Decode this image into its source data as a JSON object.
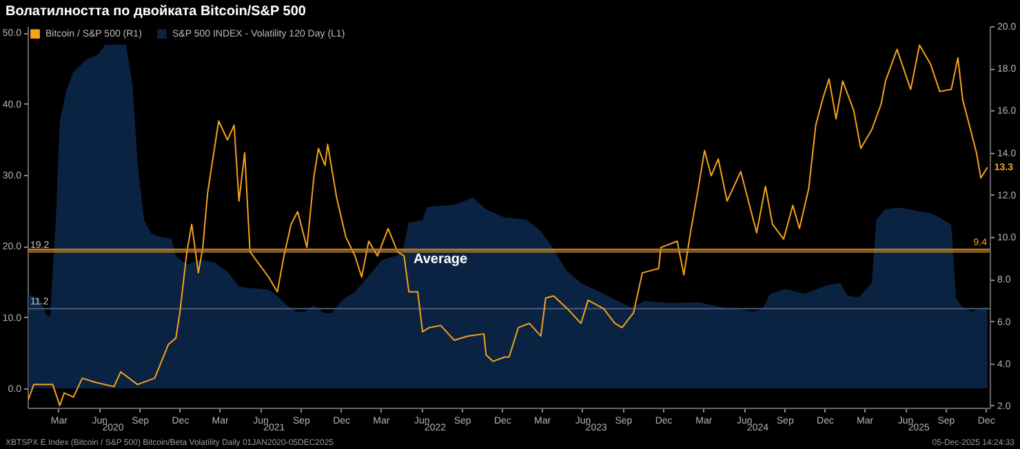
{
  "chart_data": {
    "type": "line",
    "title": "Волатилността по двойката Bitcoin/S&P 500",
    "xlim": [
      "2019-12-22",
      "2025-12-10"
    ],
    "xticks": [
      {
        "value": "2020-03-01",
        "label": "Mar"
      },
      {
        "value": "2020-06-01",
        "label": "Jun"
      },
      {
        "value": "2020-09-01",
        "label": "Sep"
      },
      {
        "value": "2020-12-01",
        "label": "Dec"
      },
      {
        "value": "2021-03-01",
        "label": "Mar"
      },
      {
        "value": "2021-06-01",
        "label": "Jun"
      },
      {
        "value": "2021-09-01",
        "label": "Sep"
      },
      {
        "value": "2021-12-01",
        "label": "Dec"
      },
      {
        "value": "2022-03-01",
        "label": "Mar"
      },
      {
        "value": "2022-06-01",
        "label": "Jun"
      },
      {
        "value": "2022-09-01",
        "label": "Sep"
      },
      {
        "value": "2022-12-01",
        "label": "Dec"
      },
      {
        "value": "2023-03-01",
        "label": "Mar"
      },
      {
        "value": "2023-06-01",
        "label": "Jun"
      },
      {
        "value": "2023-09-01",
        "label": "Sep"
      },
      {
        "value": "2023-12-01",
        "label": "Dec"
      },
      {
        "value": "2024-03-01",
        "label": "Mar"
      },
      {
        "value": "2024-06-01",
        "label": "Jun"
      },
      {
        "value": "2024-09-01",
        "label": "Sep"
      },
      {
        "value": "2024-12-01",
        "label": "Dec"
      },
      {
        "value": "2025-03-01",
        "label": "Mar"
      },
      {
        "value": "2025-06-01",
        "label": "Jun"
      },
      {
        "value": "2025-09-01",
        "label": "Sep"
      },
      {
        "value": "2025-12-01",
        "label": "Dec"
      }
    ],
    "x2lim": [
      "2019-12-22",
      "2025-12-10"
    ],
    "x2ticks": [
      {
        "value": "2020-07-01",
        "label": "2020"
      },
      {
        "value": "2021-07-01",
        "label": "2021"
      },
      {
        "value": "2022-07-01",
        "label": "2022"
      },
      {
        "value": "2023-07-01",
        "label": "2023"
      },
      {
        "value": "2024-07-01",
        "label": "2024"
      },
      {
        "value": "2025-07-01",
        "label": "2025"
      }
    ],
    "ylim": [
      -2.7,
      50.9
    ],
    "yticks": [
      {
        "value": 0,
        "label": "0.0"
      },
      {
        "value": 10,
        "label": "10.0"
      },
      {
        "value": 20,
        "label": "20.0"
      },
      {
        "value": 30,
        "label": "30.0"
      },
      {
        "value": 40,
        "label": "40.0"
      },
      {
        "value": 50,
        "label": "50.0"
      }
    ],
    "y2lim": [
      1.9,
      20.0
    ],
    "y2ticks": [
      {
        "value": 2,
        "label": "2.0"
      },
      {
        "value": 4,
        "label": "4.0"
      },
      {
        "value": 6,
        "label": "6.0"
      },
      {
        "value": 8,
        "label": "8.0"
      },
      {
        "value": 10,
        "label": "10.0"
      },
      {
        "value": 12,
        "label": "12.0"
      },
      {
        "value": 14,
        "label": "14.0"
      },
      {
        "value": 16,
        "label": "16.0"
      },
      {
        "value": 18,
        "label": "18.0"
      },
      {
        "value": 20,
        "label": "20.0"
      }
    ],
    "legend": "top left",
    "ref_lines": [
      {
        "axis": "y",
        "value": 19.2,
        "label": "19.2",
        "color": "#b07a2a"
      },
      {
        "axis": "y2",
        "value": 9.4,
        "label": "9.4",
        "color": "#b07a2a"
      },
      {
        "axis": "y",
        "value": 11.2,
        "label": "11.2",
        "color": "#4a5a78"
      }
    ],
    "annotations": [
      "Average",
      "XBTSPX E Index (Bitcoin / S&P 500) Bitcoin/Beta Volatility Daily 01JAN2020-05DEC2025",
      "05-Dec-2025 14:24:33"
    ],
    "series": [
      {
        "name": "Bitcoin / S&P 500  (R1)",
        "type": "line",
        "axis": "y2",
        "color": "#f7a21b",
        "x": [
          "2019-12-24",
          "2020-01-05",
          "2020-01-27",
          "2020-02-17",
          "2020-03-04",
          "2020-03-14",
          "2020-04-04",
          "2020-04-24",
          "2020-05-24",
          "2020-07-05",
          "2020-07-20",
          "2020-08-27",
          "2020-10-05",
          "2020-11-05",
          "2020-11-22",
          "2020-12-01",
          "2020-12-17",
          "2020-12-28",
          "2021-01-12",
          "2021-01-22",
          "2021-02-02",
          "2021-02-27",
          "2021-03-19",
          "2021-04-03",
          "2021-04-14",
          "2021-04-27",
          "2021-05-09",
          "2021-05-30",
          "2021-06-20",
          "2021-07-10",
          "2021-07-25",
          "2021-08-10",
          "2021-08-25",
          "2021-09-15",
          "2021-10-01",
          "2021-10-11",
          "2021-10-26",
          "2021-11-01",
          "2021-11-21",
          "2021-12-12",
          "2022-01-02",
          "2022-01-17",
          "2022-02-02",
          "2022-02-22",
          "2022-03-18",
          "2022-04-08",
          "2022-04-23",
          "2022-05-04",
          "2022-05-24",
          "2022-06-04",
          "2022-06-19",
          "2022-07-15",
          "2022-08-15",
          "2022-09-15",
          "2022-10-21",
          "2022-10-26",
          "2022-11-11",
          "2022-12-07",
          "2022-12-17",
          "2023-01-07",
          "2023-02-01",
          "2023-02-27",
          "2023-03-10",
          "2023-03-28",
          "2023-04-28",
          "2023-05-29",
          "2023-06-14",
          "2023-07-19",
          "2023-08-14",
          "2023-08-30",
          "2023-09-25",
          "2023-10-15",
          "2023-11-21",
          "2023-11-26",
          "2024-01-02",
          "2024-01-17",
          "2024-02-01",
          "2024-02-17",
          "2024-03-04",
          "2024-03-19",
          "2024-04-04",
          "2024-04-24",
          "2024-05-25",
          "2024-06-30",
          "2024-07-20",
          "2024-08-05",
          "2024-08-30",
          "2024-09-20",
          "2024-10-05",
          "2024-10-26",
          "2024-11-11",
          "2024-11-26",
          "2024-12-11",
          "2024-12-27",
          "2025-01-11",
          "2025-02-05",
          "2025-02-21",
          "2025-03-18",
          "2025-04-08",
          "2025-04-18",
          "2025-05-14",
          "2025-06-14",
          "2025-07-04",
          "2025-07-29",
          "2025-08-19",
          "2025-09-14",
          "2025-09-29",
          "2025-10-10",
          "2025-10-25",
          "2025-11-10",
          "2025-11-20",
          "2025-12-05"
        ],
        "values": [
          2.3,
          3.0,
          3.0,
          3.0,
          2.0,
          2.6,
          2.4,
          3.3,
          3.1,
          2.9,
          3.6,
          3.0,
          3.3,
          4.9,
          5.2,
          6.4,
          9.3,
          10.6,
          8.3,
          9.5,
          12.1,
          15.5,
          14.6,
          15.3,
          11.7,
          14.0,
          9.3,
          8.7,
          8.1,
          7.4,
          9.1,
          10.6,
          11.2,
          9.5,
          12.9,
          14.2,
          13.4,
          14.4,
          11.9,
          10.0,
          9.1,
          8.1,
          9.8,
          9.1,
          10.4,
          9.3,
          9.1,
          7.4,
          7.4,
          5.5,
          5.7,
          5.8,
          5.1,
          5.3,
          5.4,
          4.4,
          4.1,
          4.3,
          4.3,
          5.7,
          5.9,
          5.3,
          7.1,
          7.2,
          6.6,
          5.9,
          7.0,
          6.6,
          5.9,
          5.7,
          6.4,
          8.3,
          8.5,
          9.5,
          9.8,
          8.2,
          10.2,
          12.1,
          14.1,
          12.9,
          13.7,
          11.7,
          13.1,
          10.2,
          12.4,
          10.6,
          9.9,
          11.5,
          10.4,
          12.3,
          15.3,
          16.5,
          17.5,
          15.6,
          17.4,
          16.0,
          14.2,
          15.1,
          16.3,
          17.4,
          18.9,
          17.0,
          19.1,
          18.2,
          16.9,
          17.0,
          18.5,
          16.5,
          15.3,
          14.0,
          12.8,
          13.3
        ],
        "value_labels": [
          null,
          null,
          null,
          null,
          null,
          null,
          null,
          null,
          null,
          null,
          null,
          null,
          null,
          null,
          null,
          null,
          null,
          null,
          null,
          null,
          null,
          null,
          null,
          null,
          null,
          null,
          null,
          null,
          null,
          null,
          null,
          null,
          null,
          null,
          null,
          null,
          null,
          null,
          null,
          null,
          null,
          null,
          null,
          null,
          null,
          null,
          null,
          null,
          null,
          null,
          null,
          null,
          null,
          null,
          null,
          null,
          null,
          null,
          null,
          null,
          null,
          null,
          null,
          null,
          null,
          null,
          null,
          null,
          null,
          null,
          null,
          null,
          null,
          null,
          null,
          null,
          null,
          null,
          null,
          null,
          null,
          null,
          null,
          null,
          null,
          null,
          null,
          null,
          null,
          null,
          null,
          null,
          null,
          null,
          null,
          null,
          null,
          null,
          null,
          null,
          null,
          null,
          null,
          null,
          null,
          null,
          null,
          null,
          null,
          null,
          null,
          "13.3"
        ]
      },
      {
        "name": "S&P 500 INDEX - Volatility 120 Day (L1)",
        "type": "area",
        "color": "#0b2342",
        "x": [
          "2019-12-24",
          "2020-01-18",
          "2020-02-03",
          "2020-02-11",
          "2020-02-24",
          "2020-03-04",
          "2020-03-19",
          "2020-04-04",
          "2020-05-05",
          "2020-05-30",
          "2020-06-15",
          "2020-08-01",
          "2020-08-16",
          "2020-08-27",
          "2020-09-11",
          "2020-09-27",
          "2020-10-17",
          "2020-11-12",
          "2020-11-22",
          "2020-12-17",
          "2021-01-18",
          "2021-02-18",
          "2021-03-19",
          "2021-04-14",
          "2021-05-09",
          "2021-06-20",
          "2021-07-10",
          "2021-07-31",
          "2021-08-21",
          "2021-09-11",
          "2021-10-01",
          "2021-10-22",
          "2021-11-12",
          "2021-12-02",
          "2022-01-02",
          "2022-02-02",
          "2022-03-03",
          "2022-04-03",
          "2022-04-19",
          "2022-05-04",
          "2022-06-04",
          "2022-06-14",
          "2022-08-15",
          "2022-09-26",
          "2022-10-26",
          "2022-12-07",
          "2022-12-17",
          "2023-01-27",
          "2023-02-27",
          "2023-03-28",
          "2023-04-24",
          "2023-05-29",
          "2023-07-09",
          "2023-08-20",
          "2023-09-20",
          "2023-10-21",
          "2023-12-12",
          "2024-02-22",
          "2024-04-13",
          "2024-06-24",
          "2024-07-14",
          "2024-07-30",
          "2024-09-04",
          "2024-10-16",
          "2024-12-06",
          "2025-01-06",
          "2025-01-22",
          "2025-02-17",
          "2025-03-18",
          "2025-03-28",
          "2025-04-18",
          "2025-05-18",
          "2025-07-29",
          "2025-08-19",
          "2025-09-14",
          "2025-09-25",
          "2025-10-10",
          "2025-10-31",
          "2025-11-26",
          "2025-12-05"
        ],
        "values": [
          13.2,
          12.6,
          10.3,
          10.1,
          23.7,
          37.5,
          41.9,
          44.5,
          46.3,
          46.9,
          48.3,
          48.3,
          42.6,
          31.8,
          23.7,
          21.8,
          21.3,
          21.1,
          18.6,
          17.4,
          18.1,
          17.7,
          16.4,
          14.3,
          14.1,
          13.9,
          13.0,
          11.7,
          10.8,
          10.8,
          11.7,
          10.6,
          10.6,
          12.3,
          13.6,
          15.8,
          18.0,
          18.6,
          19.2,
          23.3,
          23.7,
          25.5,
          25.8,
          26.8,
          25.2,
          24.0,
          24.0,
          23.7,
          22.1,
          19.6,
          16.7,
          14.8,
          13.6,
          12.3,
          11.4,
          12.3,
          12.0,
          12.1,
          11.4,
          10.8,
          11.2,
          13.3,
          14.0,
          13.3,
          14.5,
          14.8,
          13.0,
          12.8,
          14.8,
          23.7,
          25.2,
          25.4,
          24.6,
          24.0,
          23.0,
          12.6,
          11.4,
          10.8,
          11.4,
          11.4
        ]
      }
    ]
  }
}
